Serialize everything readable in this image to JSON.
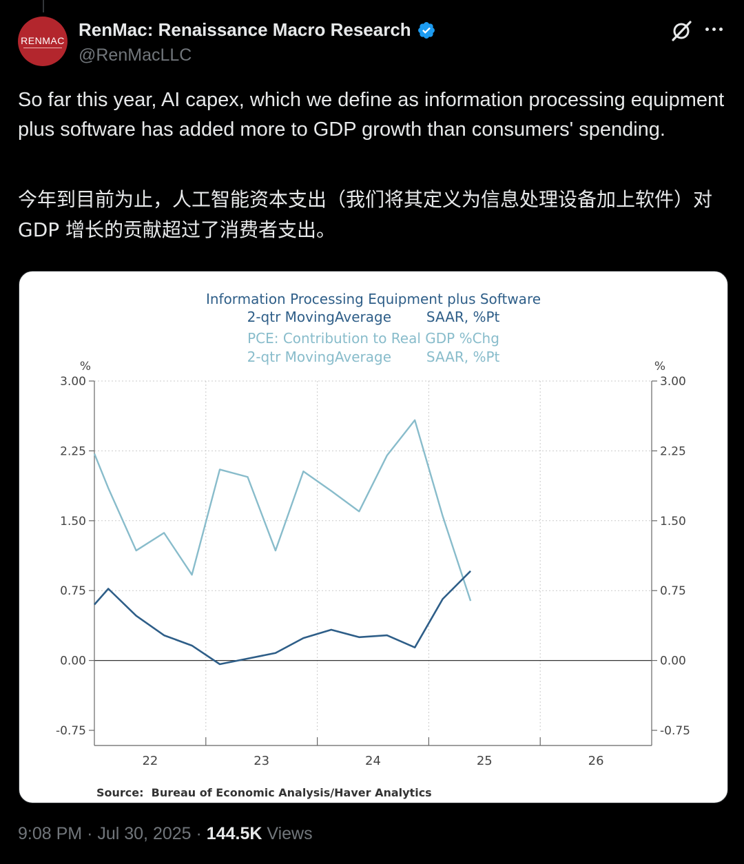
{
  "author": {
    "display_name": "RenMac: Renaissance Macro Research",
    "handle": "@RenMacLLC",
    "avatar_text": "RENMAC",
    "verified_icon": "verified-badge-icon"
  },
  "tweet": {
    "text_en": "So far this year, AI capex, which we define as information processing equipment plus software has added more to GDP growth than consumers' spending.",
    "text_cn": "今年到目前为止，人工智能资本支出（我们将其定义为信息处理设备加上软件）对 GDP 增长的贡献超过了消费者支出。"
  },
  "meta": {
    "time": "9:08 PM",
    "date": "Jul 30, 2025",
    "views_count": "144.5K",
    "views_label": "Views"
  },
  "colors": {
    "dark_series": "#2e5e88",
    "light_series": "#88bccb",
    "avatar_bg": "#b3262d",
    "verified": "#1d9bf0"
  },
  "chart_data": {
    "type": "line",
    "title_lines": [
      "Information Processing Equipment plus Software",
      "2-qtr MovingAverage        SAAR, %Pt"
    ],
    "subtitle_lines": [
      "PCE: Contribution to Real GDP %Chg",
      "2-qtr MovingAverage        SAAR, %Pt"
    ],
    "y_unit_left": "%",
    "y_unit_right": "%",
    "ylim": [
      -0.75,
      3.0
    ],
    "yticks": [
      "3.00",
      "2.25",
      "1.50",
      "0.75",
      "0.00",
      "-0.75"
    ],
    "ytick_values": [
      3.0,
      2.25,
      1.5,
      0.75,
      0.0,
      -0.75
    ],
    "xlim": [
      2022.0,
      2027.0
    ],
    "xticks": [
      "22",
      "23",
      "24",
      "25",
      "26"
    ],
    "grid": true,
    "source": "Source:  Bureau of Economic Analysis/Haver Analytics",
    "series": [
      {
        "x": [
          2022.0,
          2022.125,
          2022.375,
          2022.625,
          2022.875,
          2023.125,
          2023.375,
          2023.625,
          2023.875,
          2024.125,
          2024.375,
          2024.625,
          2024.875,
          2025.125,
          2025.375
        ],
        "y": [
          0.6,
          0.77,
          0.48,
          0.27,
          0.16,
          -0.04,
          0.02,
          0.08,
          0.24,
          0.33,
          0.25,
          0.27,
          0.14,
          0.66,
          0.96
        ]
      },
      {
        "x": [
          2022.0,
          2022.125,
          2022.375,
          2022.625,
          2022.875,
          2023.125,
          2023.375,
          2023.625,
          2023.875,
          2024.125,
          2024.375,
          2024.625,
          2024.875,
          2025.125,
          2025.375
        ],
        "y": [
          2.22,
          1.85,
          1.18,
          1.37,
          0.92,
          2.05,
          1.97,
          1.18,
          2.03,
          1.82,
          1.6,
          2.2,
          2.58,
          1.55,
          0.64
        ]
      }
    ]
  }
}
